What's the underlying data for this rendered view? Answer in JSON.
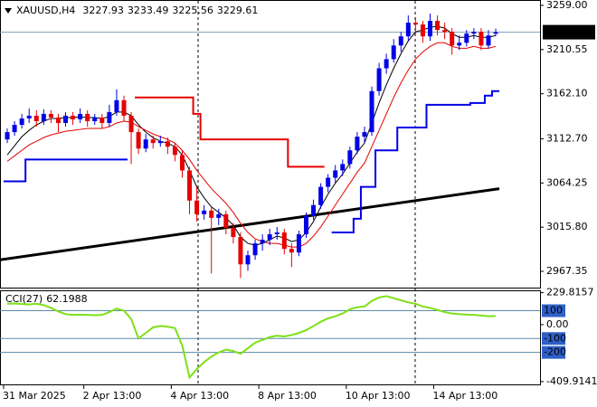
{
  "header": {
    "symbol": "XAUUSD,H4"
  },
  "chart_data": [
    {
      "type": "candlestick",
      "up_color": "#0000e6",
      "down_color": "#e60000",
      "open": [
        3112,
        3120,
        3128,
        3135,
        3138,
        3132,
        3140,
        3136,
        3130,
        3138,
        3134,
        3140,
        3132,
        3136,
        3130,
        3142,
        3155,
        3138,
        3120,
        3102,
        3112,
        3108,
        3110,
        3104,
        3095,
        3078,
        3045,
        3030,
        3034,
        3026,
        3030,
        3015,
        3005,
        2975,
        2985,
        2998,
        3002,
        3008,
        3010,
        2992,
        2988,
        3008,
        3028,
        3040,
        3060,
        3070,
        3078,
        3085,
        3100,
        3115,
        3120,
        3165,
        3190,
        3200,
        3215,
        3225,
        3240,
        3238,
        3225,
        3242,
        3232,
        3230,
        3215,
        3218,
        3228,
        3230,
        3215,
        3227.93
      ],
      "high": [
        3124,
        3132,
        3140,
        3146,
        3144,
        3145,
        3144,
        3140,
        3142,
        3142,
        3146,
        3144,
        3140,
        3140,
        3150,
        3167,
        3160,
        3142,
        3124,
        3118,
        3116,
        3116,
        3114,
        3108,
        3100,
        3082,
        3060,
        3040,
        3038,
        3036,
        3034,
        3020,
        3010,
        2990,
        3002,
        3008,
        3014,
        3016,
        3014,
        2998,
        3012,
        3032,
        3046,
        3064,
        3074,
        3084,
        3090,
        3104,
        3120,
        3126,
        3170,
        3196,
        3206,
        3222,
        3230,
        3248,
        3246,
        3242,
        3250,
        3248,
        3240,
        3234,
        3226,
        3232,
        3234,
        3234,
        3232,
        3233.49
      ],
      "low": [
        3108,
        3116,
        3124,
        3130,
        3126,
        3128,
        3130,
        3120,
        3126,
        3128,
        3130,
        3126,
        3128,
        3124,
        3126,
        3138,
        3132,
        3085,
        3096,
        3098,
        3102,
        3104,
        3096,
        3088,
        3070,
        3030,
        3022,
        3024,
        2965,
        3018,
        3008,
        2998,
        2960,
        2968,
        2980,
        2990,
        2996,
        3002,
        2986,
        2972,
        2984,
        3004,
        3024,
        3036,
        3054,
        3064,
        3072,
        3080,
        3096,
        3108,
        3116,
        3160,
        3184,
        3196,
        3208,
        3220,
        3228,
        3218,
        3220,
        3226,
        3222,
        3205,
        3210,
        3214,
        3222,
        3210,
        3212,
        3225.56
      ],
      "close": [
        3120,
        3128,
        3135,
        3138,
        3132,
        3140,
        3136,
        3130,
        3138,
        3134,
        3140,
        3132,
        3136,
        3130,
        3142,
        3155,
        3138,
        3120,
        3102,
        3112,
        3108,
        3110,
        3104,
        3095,
        3078,
        3045,
        3030,
        3034,
        3026,
        3030,
        3015,
        3005,
        2975,
        2985,
        2998,
        3002,
        3008,
        3010,
        2992,
        2988,
        3008,
        3028,
        3040,
        3060,
        3070,
        3078,
        3085,
        3100,
        3115,
        3120,
        3165,
        3190,
        3200,
        3215,
        3225,
        3240,
        3238,
        3225,
        3242,
        3232,
        3230,
        3215,
        3218,
        3228,
        3230,
        3215,
        3226,
        3229.61
      ],
      "series": [
        {
          "color": "#000000",
          "values": [
            3095,
            3105,
            3115,
            3122,
            3128,
            3132,
            3135,
            3135,
            3136,
            3136,
            3137,
            3136,
            3136,
            3135,
            3137,
            3142,
            3142,
            3138,
            3128,
            3120,
            3114,
            3110,
            3108,
            3104,
            3095,
            3078,
            3060,
            3048,
            3038,
            3032,
            3026,
            3018,
            3005,
            2998,
            2996,
            2998,
            3002,
            3006,
            3004,
            3000,
            3002,
            3010,
            3022,
            3038,
            3052,
            3064,
            3074,
            3086,
            3098,
            3108,
            3130,
            3152,
            3172,
            3190,
            3206,
            3220,
            3230,
            3232,
            3235,
            3236,
            3234,
            3228,
            3224,
            3224,
            3226,
            3224,
            3224,
            3226
          ]
        },
        {
          "color": "#e60000",
          "values": [
            3088,
            3094,
            3100,
            3106,
            3110,
            3114,
            3117,
            3119,
            3121,
            3122,
            3123,
            3124,
            3124,
            3124,
            3126,
            3130,
            3132,
            3131,
            3126,
            3122,
            3118,
            3115,
            3112,
            3108,
            3100,
            3090,
            3078,
            3068,
            3058,
            3050,
            3042,
            3032,
            3020,
            3010,
            3003,
            3000,
            2998,
            2998,
            2996,
            2994,
            2994,
            2998,
            3006,
            3016,
            3028,
            3040,
            3052,
            3064,
            3076,
            3086,
            3104,
            3122,
            3140,
            3158,
            3174,
            3188,
            3200,
            3208,
            3214,
            3218,
            3218,
            3214,
            3212,
            3212,
            3214,
            3212,
            3212,
            3214
          ]
        },
        {
          "color": "#e60000",
          "step": true,
          "values": [
            null,
            null,
            null,
            null,
            null,
            null,
            null,
            null,
            null,
            null,
            null,
            null,
            null,
            null,
            null,
            null,
            null,
            null,
            3158,
            3158,
            3158,
            3158,
            3158,
            3158,
            3158,
            3158,
            3140,
            3112,
            3112,
            3112,
            3112,
            3112,
            3112,
            3112,
            3112,
            3112,
            3112,
            3112,
            3112,
            3082,
            3082,
            3082,
            3082,
            3082,
            null,
            null,
            null,
            null,
            null,
            null,
            null,
            null,
            null,
            null,
            null,
            null,
            null,
            null,
            null,
            null,
            null,
            null,
            null,
            null,
            null,
            null,
            null,
            null
          ]
        },
        {
          "color": "#0000e6",
          "step": true,
          "values": [
            3066,
            3066,
            3066,
            3090,
            3090,
            3090,
            3090,
            3090,
            3090,
            3090,
            3090,
            3090,
            3090,
            3090,
            3090,
            3090,
            3090,
            null,
            null,
            null,
            null,
            null,
            null,
            null,
            null,
            null,
            null,
            null,
            null,
            null,
            null,
            null,
            null,
            null,
            null,
            null,
            null,
            null,
            null,
            null,
            null,
            null,
            null,
            null,
            null,
            3010,
            3010,
            3010,
            3025,
            3060,
            3060,
            3100,
            3100,
            3100,
            3125,
            3125,
            3125,
            3125,
            3150,
            3150,
            3150,
            3150,
            3150,
            3150,
            3152,
            3152,
            3160,
            3165
          ]
        }
      ],
      "trendline": {
        "color": "#000000",
        "values": [
          2980,
          3058
        ]
      },
      "ylim": [
        2949.5,
        3263.9
      ],
      "yticks": [
        {
          "value": 3259,
          "label": "3259.00"
        },
        3210.55,
        {
          "value": 3162.1,
          "label": "3162.10"
        },
        {
          "value": 3112.7,
          "label": "3112.70"
        },
        3064.25,
        {
          "value": 3015.8,
          "label": "3015.80"
        },
        2967.35
      ],
      "xticks": [
        {
          "value": 0,
          "label": "31 Mar 2025"
        },
        {
          "value": 11,
          "label": "2 Apr 13:00"
        },
        {
          "value": 23,
          "label": "4 Apr 13:00"
        },
        {
          "value": 35,
          "label": "8 Apr 13:00"
        },
        {
          "value": 47,
          "label": "10 Apr 13:00"
        },
        {
          "value": 59,
          "label": "14 Apr 13:00"
        }
      ]
    },
    {
      "type": "line",
      "title": "CCI(27)",
      "color": "#7fe017",
      "values": [
        150,
        152,
        148,
        145,
        150,
        140,
        120,
        95,
        75,
        70,
        72,
        70,
        68,
        70,
        90,
        115,
        100,
        40,
        -100,
        -60,
        -20,
        -10,
        -15,
        -25,
        -150,
        -380,
        -320,
        -270,
        -230,
        -200,
        -180,
        -190,
        -210,
        -170,
        -130,
        -110,
        -90,
        -80,
        -85,
        -75,
        -60,
        -40,
        -10,
        20,
        45,
        60,
        80,
        110,
        125,
        130,
        170,
        195,
        205,
        190,
        175,
        160,
        150,
        130,
        120,
        105,
        90,
        80,
        75,
        72,
        70,
        65,
        60,
        62.1988
      ],
      "ylim": [
        -430,
        240
      ],
      "yticks": [
        229.8157,
        {
          "value": 0,
          "label": "0.00"
        },
        -409.9141
      ],
      "levels": [
        100,
        -100,
        -200
      ]
    }
  ]
}
